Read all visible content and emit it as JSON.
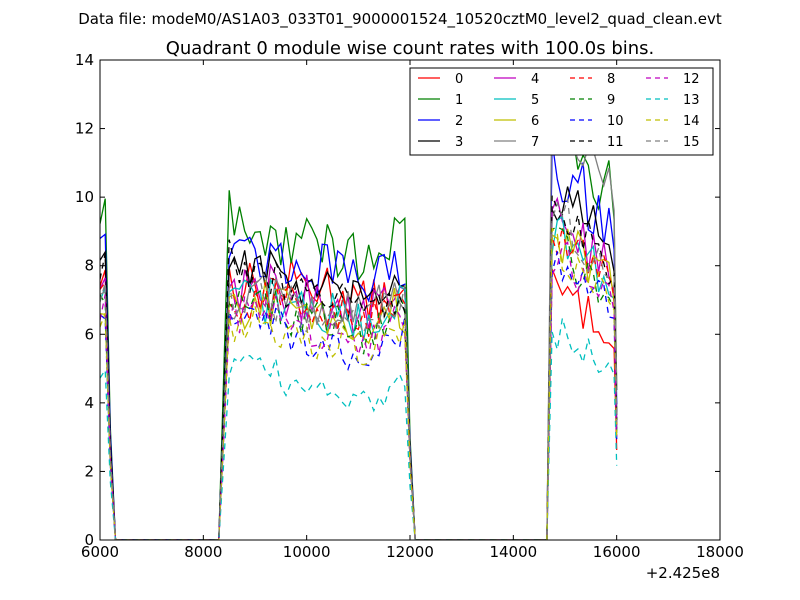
{
  "chart_data": {
    "type": "line",
    "suptitle": "Data file: modeM0/AS1A03_033T01_9000001524_10520cztM0_level2_quad_clean.evt",
    "title": "Quadrant 0 module wise count rates with 100.0s bins.",
    "xlabel": "",
    "ylabel": "",
    "x_offset_label": "+2.425e8",
    "xlim": [
      6000,
      18000
    ],
    "ylim": [
      0,
      14
    ],
    "x_ticks": [
      6000,
      8000,
      10000,
      12000,
      14000,
      16000,
      18000
    ],
    "y_ticks": [
      0,
      2,
      4,
      6,
      8,
      10,
      12,
      14
    ],
    "x_tick_labels": [
      "6000",
      "8000",
      "10000",
      "12000",
      "14000",
      "16000",
      "18000"
    ],
    "y_tick_labels": [
      "0",
      "2",
      "4",
      "6",
      "8",
      "10",
      "12",
      "14"
    ],
    "grid": false,
    "legend_position": "top-right",
    "series": [
      {
        "name": "0",
        "color": "#ff0000",
        "style": "solid",
        "seg": [
          7.6,
          7.3,
          7.5,
          7.4,
          6.9,
          7.0,
          7.5
        ]
      },
      {
        "name": "1",
        "color": "#008000",
        "style": "solid",
        "seg": [
          9.4,
          8.7,
          8.8,
          8.5,
          8.3,
          8.6,
          12.5
        ]
      },
      {
        "name": "2",
        "color": "#0000ff",
        "style": "solid",
        "seg": [
          8.9,
          8.2,
          8.0,
          7.9,
          7.4,
          8.0,
          11.3
        ]
      },
      {
        "name": "3",
        "color": "#000000",
        "style": "solid",
        "seg": [
          8.2,
          8.0,
          7.4,
          7.1,
          6.8,
          7.6,
          10.4
        ]
      },
      {
        "name": "4",
        "color": "#bf00bf",
        "style": "solid",
        "seg": [
          7.3,
          7.5,
          7.1,
          6.9,
          6.5,
          7.2,
          9.6
        ]
      },
      {
        "name": "5",
        "color": "#00bfbf",
        "style": "solid",
        "seg": [
          6.9,
          7.0,
          6.8,
          6.6,
          6.3,
          6.9,
          9.3
        ]
      },
      {
        "name": "6",
        "color": "#bfbf00",
        "style": "solid",
        "seg": [
          6.5,
          7.0,
          6.6,
          6.5,
          6.1,
          6.7,
          9.1
        ]
      },
      {
        "name": "7",
        "color": "#808080",
        "style": "solid",
        "seg": [
          7.0,
          7.3,
          6.9,
          6.8,
          6.6,
          7.1,
          12.6
        ]
      },
      {
        "name": "8",
        "color": "#ff0000",
        "style": "dashed",
        "seg": [
          7.1,
          7.1,
          6.8,
          6.7,
          6.3,
          7.0,
          9.3
        ]
      },
      {
        "name": "9",
        "color": "#008000",
        "style": "dashed",
        "seg": [
          6.9,
          6.9,
          6.5,
          6.3,
          6.0,
          6.6,
          8.8
        ]
      },
      {
        "name": "10",
        "color": "#0000ff",
        "style": "dashed",
        "seg": [
          6.3,
          6.5,
          5.8,
          5.6,
          5.4,
          6.1,
          8.4
        ]
      },
      {
        "name": "11",
        "color": "#000000",
        "style": "dashed",
        "seg": [
          8.0,
          7.6,
          7.2,
          7.0,
          6.7,
          7.3,
          10.0
        ]
      },
      {
        "name": "12",
        "color": "#bf00bf",
        "style": "dashed",
        "seg": [
          6.7,
          6.7,
          6.2,
          6.0,
          5.7,
          6.4,
          8.6
        ]
      },
      {
        "name": "13",
        "color": "#00bfbf",
        "style": "dashed",
        "seg": [
          4.9,
          5.0,
          4.5,
          4.3,
          4.0,
          4.5,
          6.2
        ]
      },
      {
        "name": "14",
        "color": "#bfbf00",
        "style": "dashed",
        "seg": [
          6.4,
          6.5,
          6.0,
          5.8,
          5.5,
          6.2,
          8.6
        ]
      },
      {
        "name": "15",
        "color": "#808080",
        "style": "dashed",
        "seg": [
          7.1,
          7.1,
          6.7,
          6.5,
          6.2,
          6.9,
          9.8
        ]
      }
    ]
  }
}
